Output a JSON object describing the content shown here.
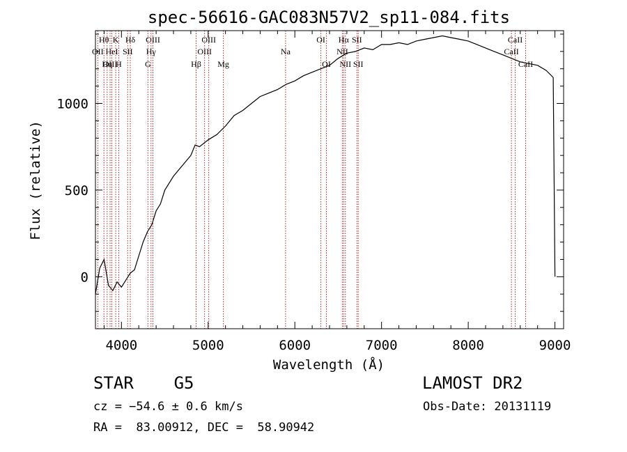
{
  "chart_data": {
    "type": "line",
    "title": "spec-56616-GAC083N57V2_sp11-084.fits",
    "xlabel": "Wavelength (Å)",
    "ylabel": "Flux (relative)",
    "xlim": [
      3700,
      9100
    ],
    "ylim": [
      -300,
      1420
    ],
    "xticks": [
      4000,
      5000,
      6000,
      7000,
      8000,
      9000
    ],
    "yticks": [
      0,
      500,
      1000
    ],
    "grid": false,
    "legend": "none",
    "line_color": "#000000",
    "marker_color": "#b22222",
    "series": [
      {
        "x": [
          3700,
          3750,
          3800,
          3850,
          3900,
          3950,
          4000,
          4050,
          4100,
          4150,
          4200,
          4250,
          4300,
          4350,
          4400,
          4450,
          4500,
          4600,
          4700,
          4800,
          4850,
          4900,
          5000,
          5100,
          5200,
          5300,
          5400,
          5500,
          5600,
          5700,
          5800,
          5900,
          6000,
          6100,
          6200,
          6300,
          6400,
          6500,
          6600,
          6700,
          6800,
          6900,
          7000,
          7100,
          7200,
          7300,
          7400,
          7500,
          7600,
          7700,
          7800,
          7900,
          8000,
          8100,
          8200,
          8300,
          8400,
          8500,
          8600,
          8700,
          8800,
          8900,
          8980,
          9000
        ],
        "y": [
          -100,
          50,
          100,
          -50,
          -80,
          -30,
          -60,
          -20,
          20,
          40,
          120,
          200,
          260,
          300,
          380,
          420,
          500,
          580,
          640,
          700,
          760,
          750,
          790,
          820,
          870,
          930,
          960,
          1000,
          1040,
          1060,
          1080,
          1110,
          1130,
          1160,
          1180,
          1200,
          1220,
          1260,
          1290,
          1300,
          1320,
          1310,
          1340,
          1340,
          1350,
          1340,
          1360,
          1370,
          1380,
          1390,
          1380,
          1370,
          1360,
          1340,
          1320,
          1300,
          1280,
          1260,
          1240,
          1230,
          1220,
          1190,
          1150,
          0
        ]
      }
    ],
    "lines": [
      {
        "label": "Hθ",
        "x": 3798,
        "row": 0
      },
      {
        "label": "OII",
        "x": 3727,
        "row": 1
      },
      {
        "label": "OIII",
        "x": 3869,
        "row": 2
      },
      {
        "label": "HeI",
        "x": 3889,
        "row": 1
      },
      {
        "label": "K",
        "x": 3934,
        "row": 0
      },
      {
        "label": "Hη",
        "x": 3835,
        "row": 2
      },
      {
        "label": "H",
        "x": 3969,
        "row": 2
      },
      {
        "label": "SII",
        "x": 4072,
        "row": 1
      },
      {
        "label": "Hδ",
        "x": 4102,
        "row": 0
      },
      {
        "label": "OIII",
        "x": 4363,
        "row": 0
      },
      {
        "label": "Hγ",
        "x": 4341,
        "row": 1
      },
      {
        "label": "G",
        "x": 4305,
        "row": 2
      },
      {
        "label": "Hβ",
        "x": 4861,
        "row": 2
      },
      {
        "label": "OIII",
        "x": 5007,
        "row": 0
      },
      {
        "label": "OIII",
        "x": 4959,
        "row": 1
      },
      {
        "label": "Mg",
        "x": 5175,
        "row": 2
      },
      {
        "label": "Na",
        "x": 5893,
        "row": 1
      },
      {
        "label": "OI",
        "x": 6300,
        "row": 0
      },
      {
        "label": "OI",
        "x": 6364,
        "row": 2
      },
      {
        "label": "Hα",
        "x": 6563,
        "row": 0
      },
      {
        "label": "NII",
        "x": 6548,
        "row": 1
      },
      {
        "label": "NII",
        "x": 6583,
        "row": 2
      },
      {
        "label": "SII",
        "x": 6716,
        "row": 0
      },
      {
        "label": "SII",
        "x": 6731,
        "row": 2
      },
      {
        "label": "CaII",
        "x": 8542,
        "row": 0
      },
      {
        "label": "CaII",
        "x": 8498,
        "row": 1
      },
      {
        "label": "CaII",
        "x": 8662,
        "row": 2
      }
    ]
  },
  "info": {
    "object": "STAR    G5",
    "survey": "LAMOST DR2",
    "cz": "cz = −54.6 ± 0.6 km/s",
    "obs_date": "Obs-Date: 20131119",
    "radec": "RA =  83.00912, DEC =  58.90942"
  }
}
